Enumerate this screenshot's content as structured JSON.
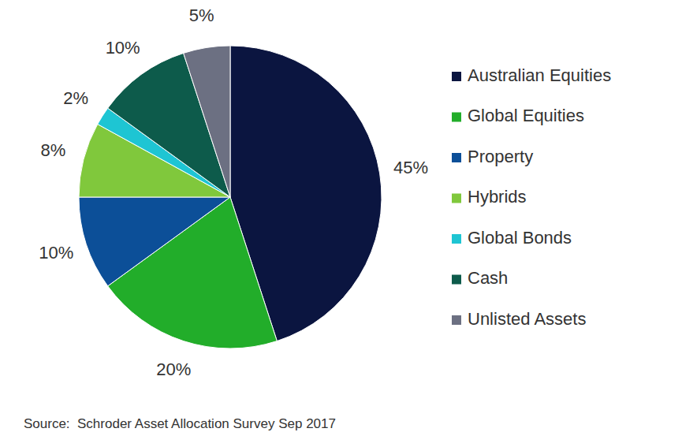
{
  "chart_data": {
    "type": "pie",
    "categories": [
      "Australian Equities",
      "Global Equities",
      "Property",
      "Hybrids",
      "Global Bonds",
      "Cash",
      "Unlisted Assets"
    ],
    "values": [
      45,
      20,
      10,
      8,
      2,
      10,
      5
    ],
    "value_labels": [
      "45%",
      "20%",
      "10%",
      "8%",
      "2%",
      "10%",
      "5%"
    ],
    "colors": [
      "#0b1540",
      "#22ad2a",
      "#0c4f98",
      "#80c83c",
      "#1ec5d3",
      "#0d5b4b",
      "#6c7082"
    ],
    "data_labels": true,
    "legend": "right",
    "annotations": [
      "Source:  Schroder Asset Allocation Survey Sep 2017"
    ]
  }
}
